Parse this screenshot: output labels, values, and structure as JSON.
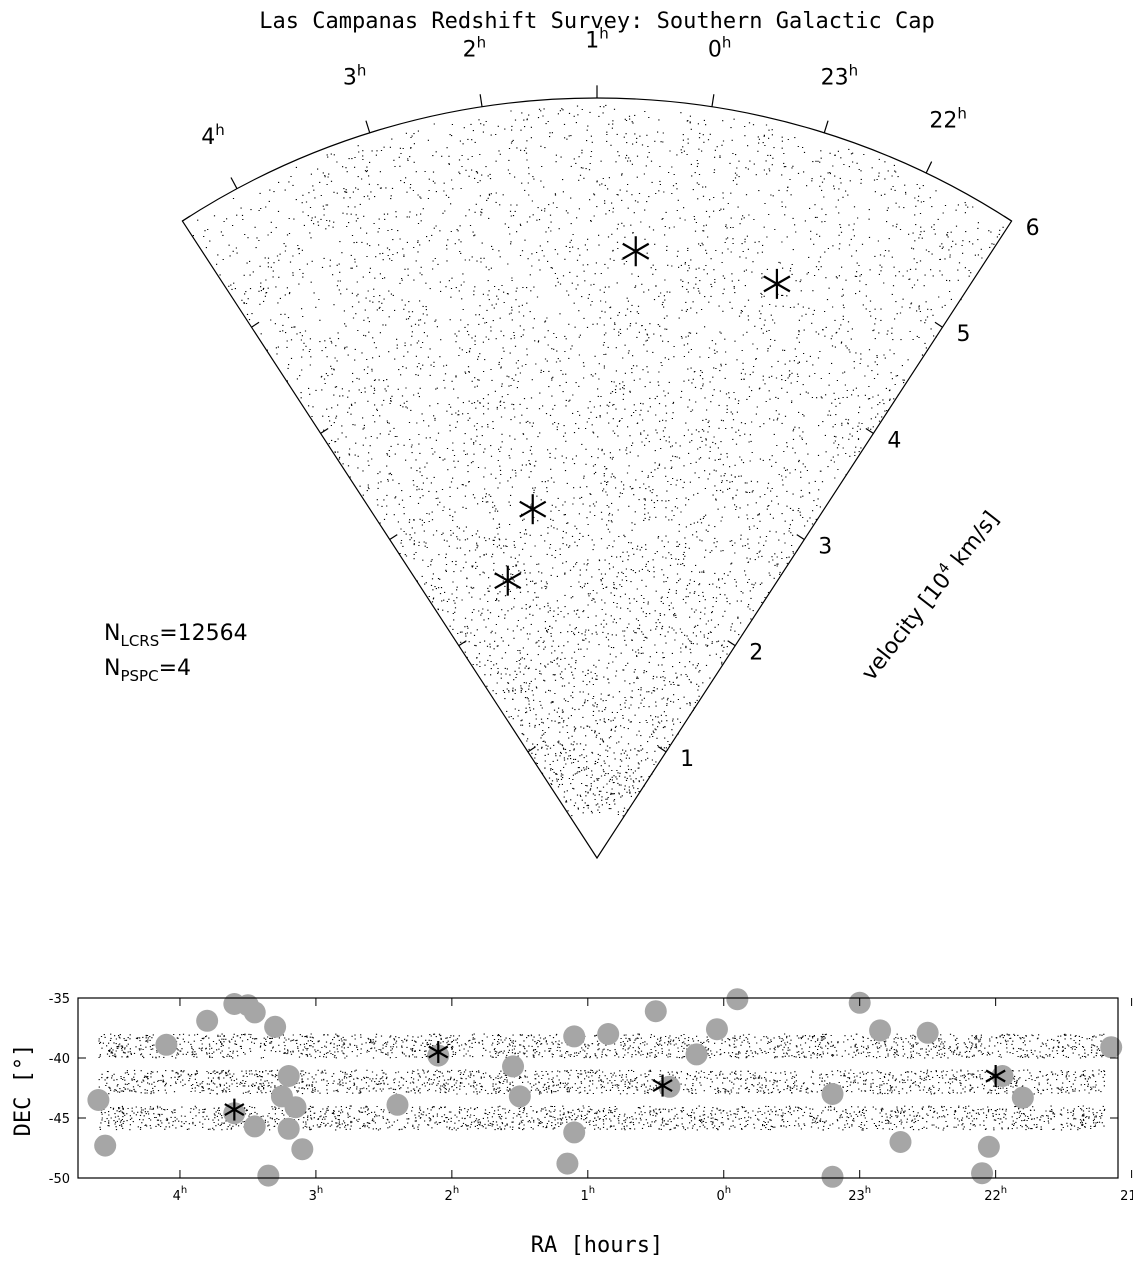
{
  "title": "Las Campanas Redshift Survey:  Southern Galactic Cap",
  "colors": {
    "points": "#000000",
    "pspc_circles": "#a6a6a6",
    "frame": "#000000"
  },
  "annotations": {
    "n_lcrs": {
      "prefix": "N",
      "sub": "LCRS",
      "value": "=12564"
    },
    "n_pspc": {
      "prefix": "N",
      "sub": "PSPC",
      "value": "=4"
    }
  },
  "chart_data": [
    {
      "type": "scatter",
      "projection": "wedge (polar cone diagram)",
      "ra_tick_labels": [
        {
          "h": "4",
          "ra": 4.25
        },
        {
          "h": "3",
          "ra": 3.0
        },
        {
          "h": "2",
          "ra": 2.0
        },
        {
          "h": "1",
          "ra": 1.0
        },
        {
          "h": "0",
          "ra": 0.0
        },
        {
          "h": "23",
          "ra": -1.0
        },
        {
          "h": "22",
          "ra": -1.95
        }
      ],
      "ra_range_hours": [
        4.8,
        -2.8
      ],
      "radial_label": {
        "text": "velocity [10",
        "sup": "4",
        "tail": " km/s]"
      },
      "radial_ticks": [
        "1",
        "2",
        "3",
        "4",
        "5",
        "6"
      ],
      "radial_range": [
        0,
        6
      ],
      "units_radial": "10^4 km/s",
      "n_galaxies": 12564,
      "clusters_pspc": [
        {
          "ra": 0.58,
          "v": 4.8
        },
        {
          "ra": -1.0,
          "v": 4.75
        },
        {
          "ra": 2.2,
          "v": 2.8
        },
        {
          "ra": 3.05,
          "v": 2.3
        }
      ]
    },
    {
      "type": "scatter",
      "xlabel": "RA [hours]",
      "ylabel": "DEC [°]",
      "xlim": [
        4.75,
        -2.9
      ],
      "ylim": [
        -50,
        -35
      ],
      "x_ticks": [
        {
          "h": "4",
          "ra": 4.0
        },
        {
          "h": "3",
          "ra": 3.0
        },
        {
          "h": "2",
          "ra": 2.0
        },
        {
          "h": "1",
          "ra": 1.0
        },
        {
          "h": "0",
          "ra": 0.0
        },
        {
          "h": "23",
          "ra": -1.0
        },
        {
          "h": "22",
          "ra": -2.0
        },
        {
          "h": "21",
          "ra": -3.0
        }
      ],
      "y_ticks": [
        "-35",
        "-40",
        "-45",
        "-50"
      ],
      "y_tick_values": [
        -35,
        -40,
        -45,
        -50
      ],
      "strips_dec": [
        {
          "dec_center": -39,
          "dec_min": -40,
          "dec_max": -38
        },
        {
          "dec_center": -42,
          "dec_min": -43,
          "dec_max": -41
        },
        {
          "dec_center": -45,
          "dec_min": -46,
          "dec_max": -44
        }
      ],
      "pspc_fields": [
        {
          "ra": 4.6,
          "dec": -43.5
        },
        {
          "ra": 4.55,
          "dec": -47.3
        },
        {
          "ra": 4.1,
          "dec": -38.9
        },
        {
          "ra": 3.8,
          "dec": -36.9
        },
        {
          "ra": 3.6,
          "dec": -35.5
        },
        {
          "ra": 3.5,
          "dec": -35.6
        },
        {
          "ra": 3.45,
          "dec": -36.2
        },
        {
          "ra": 3.3,
          "dec": -37.4
        },
        {
          "ra": 3.2,
          "dec": -41.5
        },
        {
          "ra": 3.15,
          "dec": -44.1
        },
        {
          "ra": 3.2,
          "dec": -45.9
        },
        {
          "ra": 3.1,
          "dec": -47.6
        },
        {
          "ra": 3.35,
          "dec": -49.8
        },
        {
          "ra": 3.45,
          "dec": -45.7
        },
        {
          "ra": 3.6,
          "dec": -44.6
        },
        {
          "ra": 3.25,
          "dec": -43.2
        },
        {
          "ra": 2.4,
          "dec": -43.9
        },
        {
          "ra": 2.1,
          "dec": -39.8
        },
        {
          "ra": 1.55,
          "dec": -40.7
        },
        {
          "ra": 1.5,
          "dec": -43.2
        },
        {
          "ra": 1.1,
          "dec": -38.2
        },
        {
          "ra": 1.1,
          "dec": -46.2
        },
        {
          "ra": 1.15,
          "dec": -48.8
        },
        {
          "ra": 0.85,
          "dec": -38.0
        },
        {
          "ra": 0.5,
          "dec": -36.1
        },
        {
          "ra": 0.4,
          "dec": -42.4
        },
        {
          "ra": 0.2,
          "dec": -39.7
        },
        {
          "ra": 0.05,
          "dec": -37.6
        },
        {
          "ra": -0.1,
          "dec": -35.1
        },
        {
          "ra": -0.8,
          "dec": -43.0
        },
        {
          "ra": -0.8,
          "dec": -49.9
        },
        {
          "ra": -1.0,
          "dec": -35.4
        },
        {
          "ra": -1.15,
          "dec": -37.7
        },
        {
          "ra": -1.3,
          "dec": -47.0
        },
        {
          "ra": -1.5,
          "dec": -37.9
        },
        {
          "ra": -1.9,
          "dec": -49.6
        },
        {
          "ra": -1.95,
          "dec": -47.4
        },
        {
          "ra": -2.05,
          "dec": -41.5
        },
        {
          "ra": -2.2,
          "dec": -43.3
        },
        {
          "ra": -2.85,
          "dec": -39.1
        }
      ],
      "clusters_pspc": [
        {
          "ra": 3.6,
          "dec": -44.3
        },
        {
          "ra": 2.1,
          "dec": -39.5
        },
        {
          "ra": 0.45,
          "dec": -42.3
        },
        {
          "ra": -2.0,
          "dec": -41.5
        }
      ]
    }
  ]
}
